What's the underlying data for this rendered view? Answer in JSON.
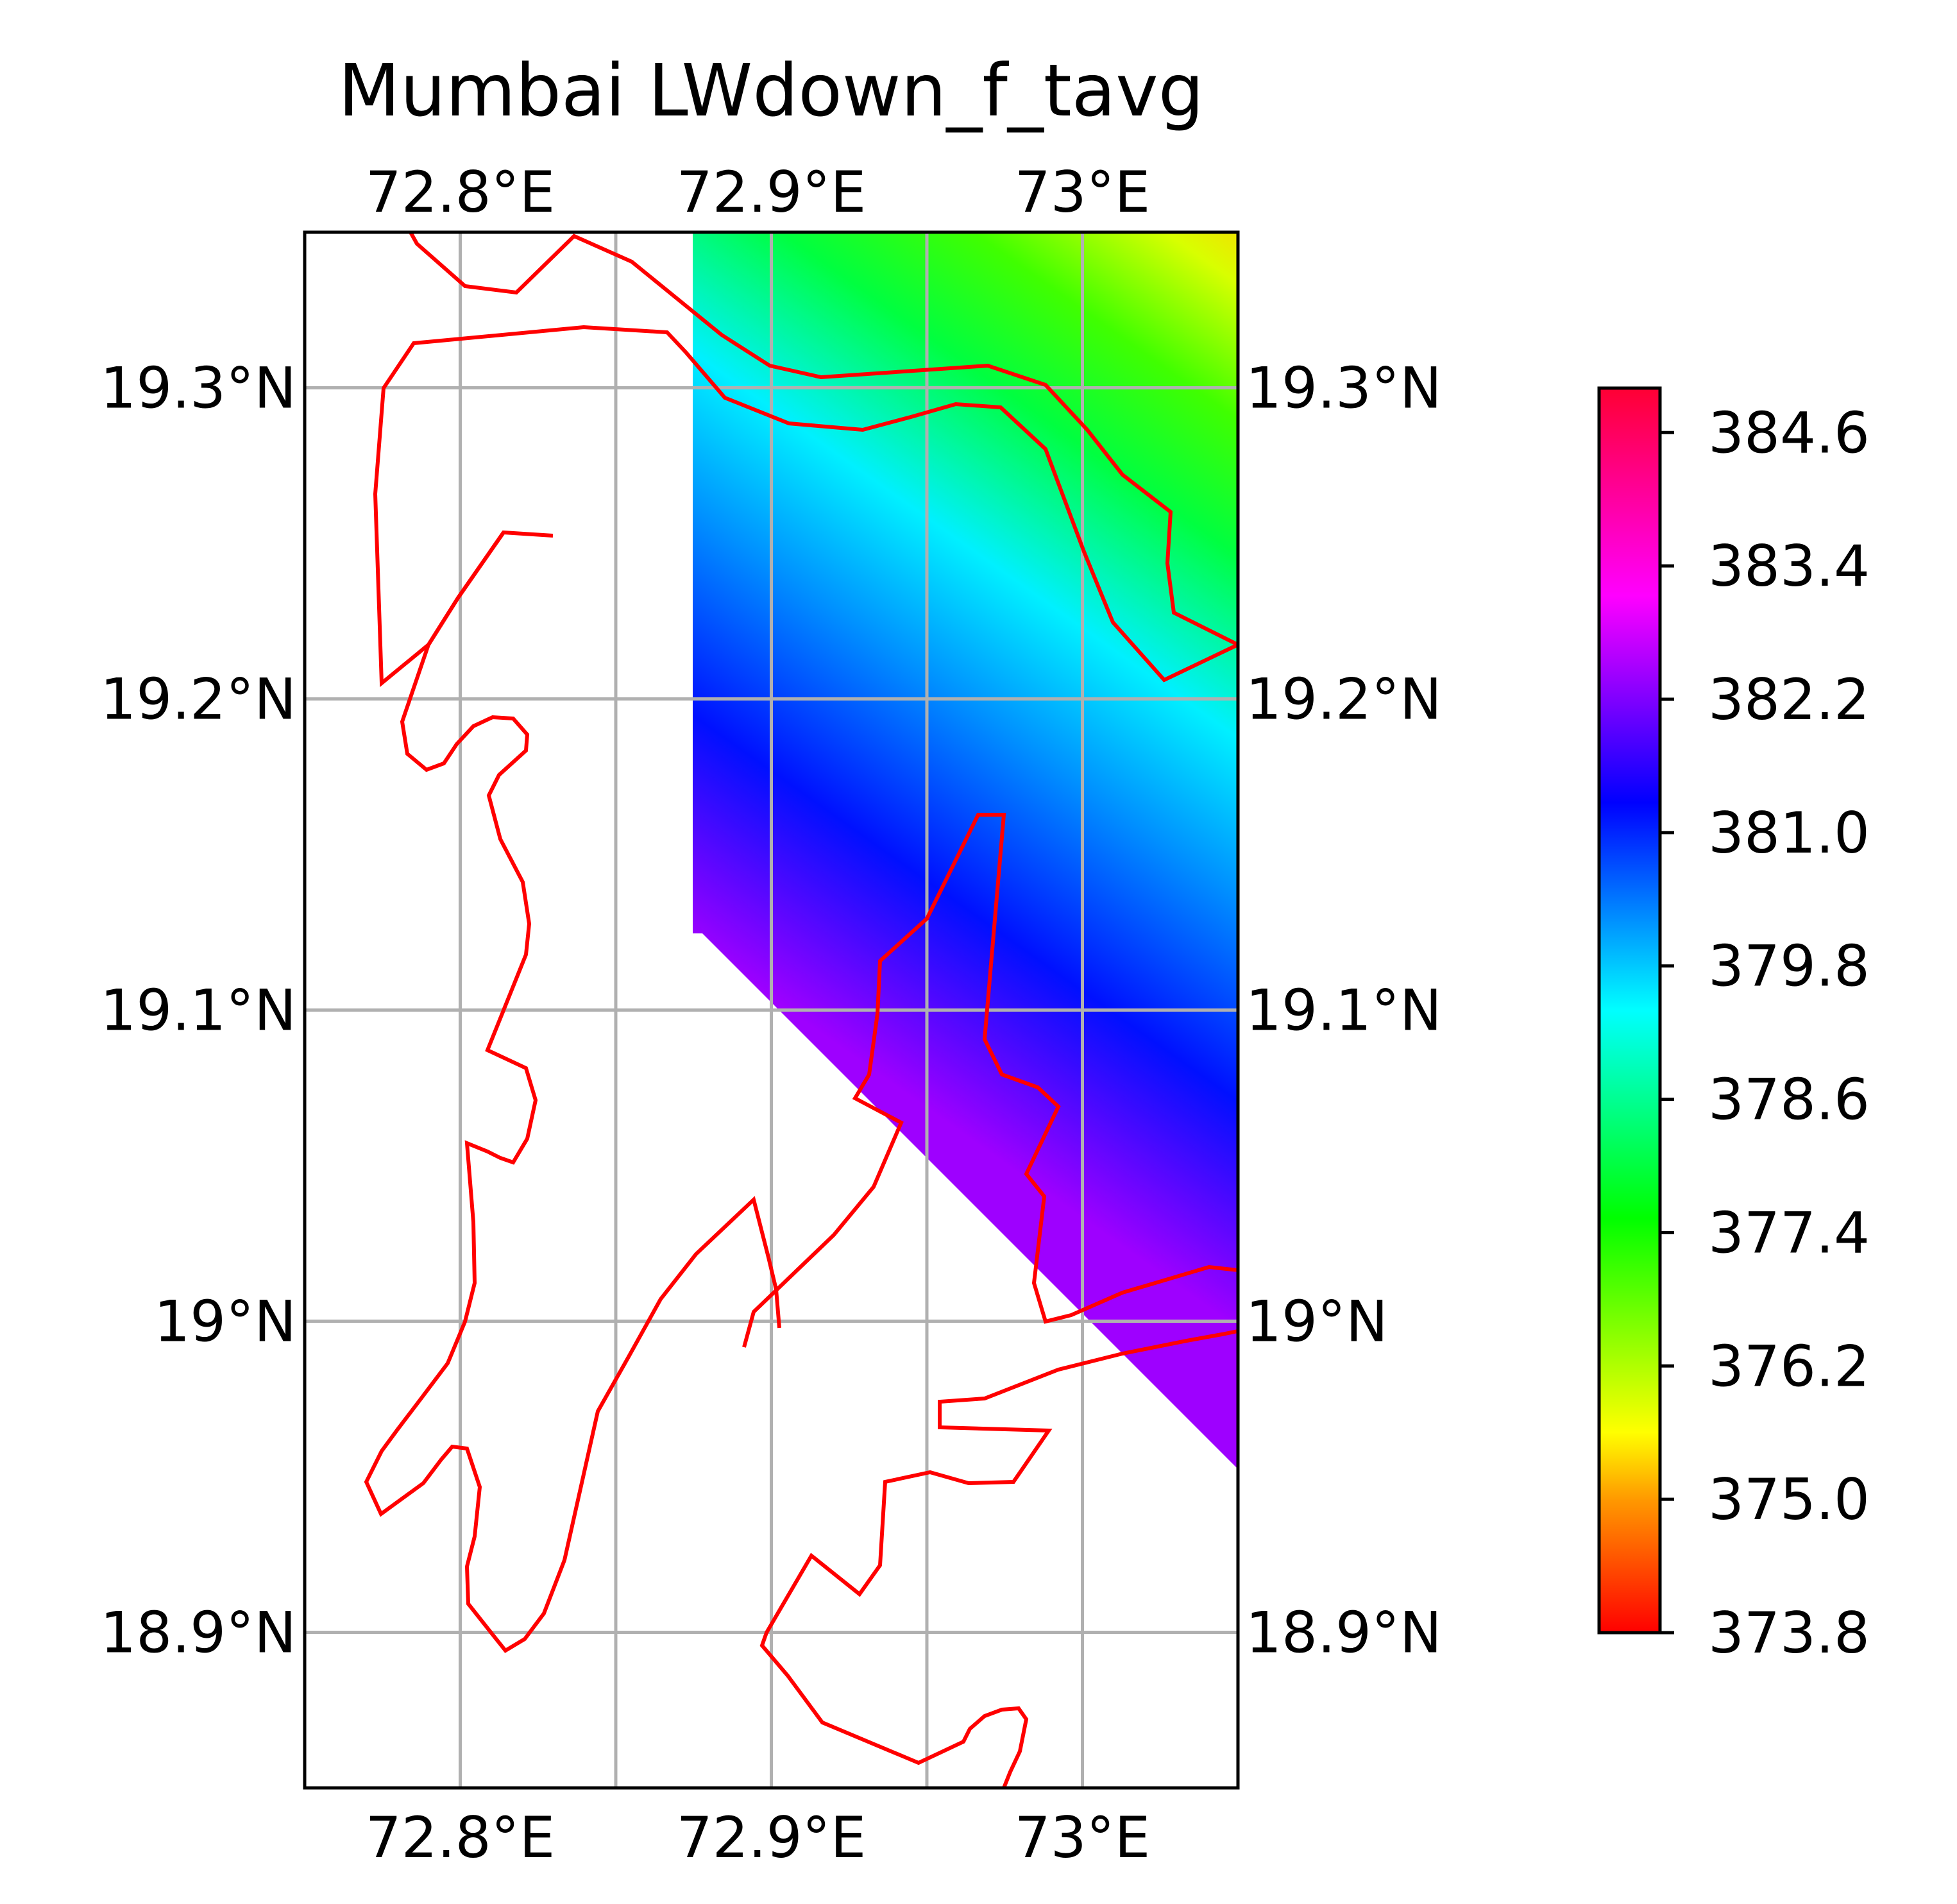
{
  "title": "Mumbai LWdown_f_tavg",
  "map": {
    "lon_range": [
      72.75,
      73.05
    ],
    "lat_range": [
      18.85,
      19.35
    ],
    "grid": true,
    "lon_ticks": [
      {
        "value": 72.8,
        "label": "72.8°E"
      },
      {
        "value": 72.9,
        "label": "72.9°E"
      },
      {
        "value": 73.0,
        "label": "73°E"
      }
    ],
    "lat_ticks": [
      {
        "value": 19.3,
        "label": "19.3°N"
      },
      {
        "value": 19.2,
        "label": "19.2°N"
      },
      {
        "value": 19.1,
        "label": "19.1°N"
      },
      {
        "value": 19.0,
        "label": "19°N"
      },
      {
        "value": 18.9,
        "label": "18.9°N"
      }
    ],
    "coastline_color": "#ff0000"
  },
  "colorbar": {
    "min": 373.8,
    "max": 385.0,
    "ticks": [
      {
        "value": 373.8,
        "label": "373.8"
      },
      {
        "value": 375.0,
        "label": "375.0"
      },
      {
        "value": 376.2,
        "label": "376.2"
      },
      {
        "value": 377.4,
        "label": "377.4"
      },
      {
        "value": 378.6,
        "label": "378.6"
      },
      {
        "value": 379.8,
        "label": "379.8"
      },
      {
        "value": 381.0,
        "label": "381.0"
      },
      {
        "value": 382.2,
        "label": "382.2"
      },
      {
        "value": 383.4,
        "label": "383.4"
      },
      {
        "value": 384.6,
        "label": "384.6"
      }
    ],
    "colormap": "hsv"
  }
}
